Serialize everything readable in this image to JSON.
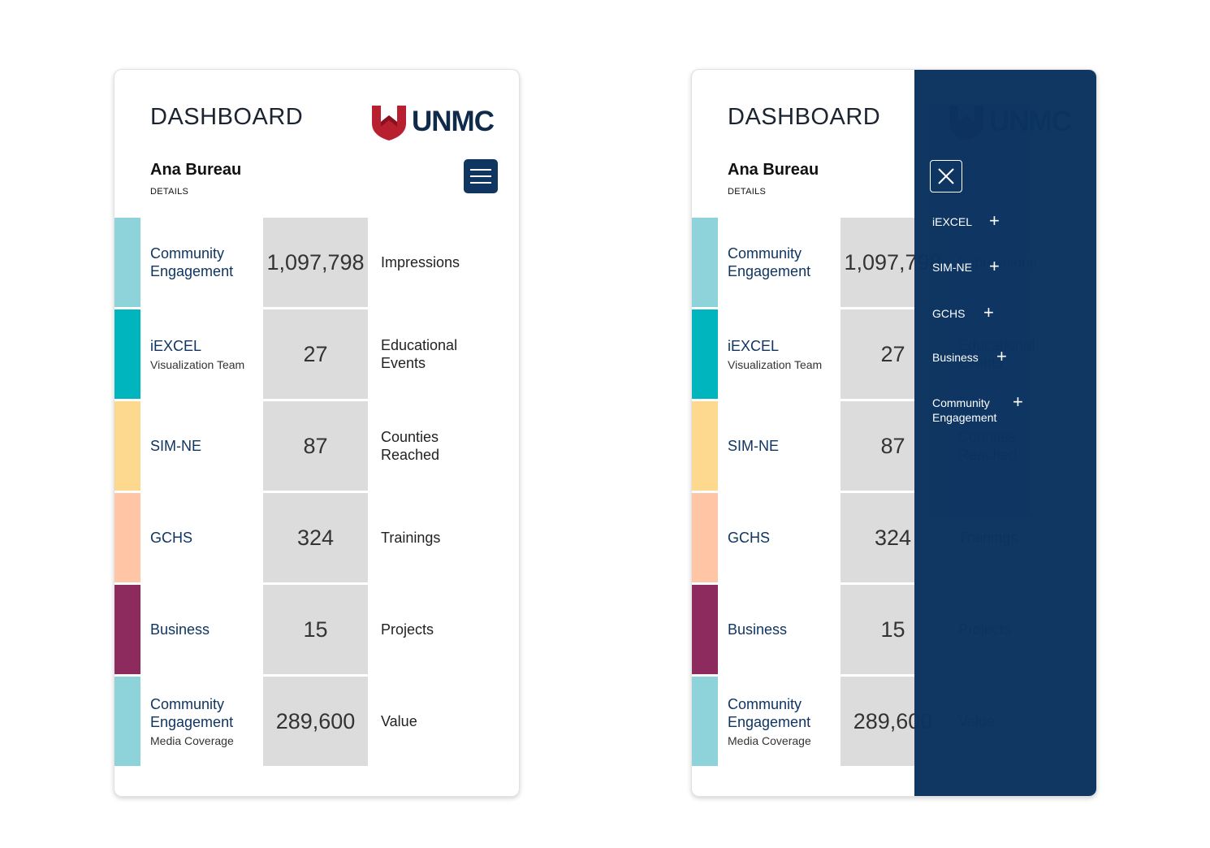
{
  "dashboard": {
    "title": "DASHBOARD",
    "brand": "UNMC",
    "user_name": "Ana Bureau",
    "details_label": "DETAILS"
  },
  "rows": [
    {
      "label": "Community Engagement",
      "sub": "",
      "value": "1,097,798",
      "metric": "Impressions",
      "color": "#8fd3da"
    },
    {
      "label": "iEXCEL",
      "sub": "Visualization Team",
      "value": "27",
      "metric": "Educational Events",
      "color": "#00b5bd"
    },
    {
      "label": "SIM-NE",
      "sub": "",
      "value": "87",
      "metric": "Counties Reached",
      "color": "#fdd88f"
    },
    {
      "label": "GCHS",
      "sub": "",
      "value": "324",
      "metric": "Trainings",
      "color": "#ffc5a5"
    },
    {
      "label": "Business",
      "sub": "",
      "value": "15",
      "metric": "Projects",
      "color": "#8e2b5e"
    },
    {
      "label": "Community Engagement",
      "sub": "Media Coverage",
      "value": "289,600",
      "metric": "Value",
      "color": "#8fd3da"
    }
  ],
  "nav_menu": {
    "items": [
      "iEXCEL",
      "SIM-NE",
      "GCHS",
      "Business",
      "Community Engagement"
    ],
    "expand_symbol": "+"
  },
  "colors": {
    "accent_navy": "#0f3561",
    "brand_red": "#b9202f",
    "metric_bg": "#dcdcdc"
  }
}
